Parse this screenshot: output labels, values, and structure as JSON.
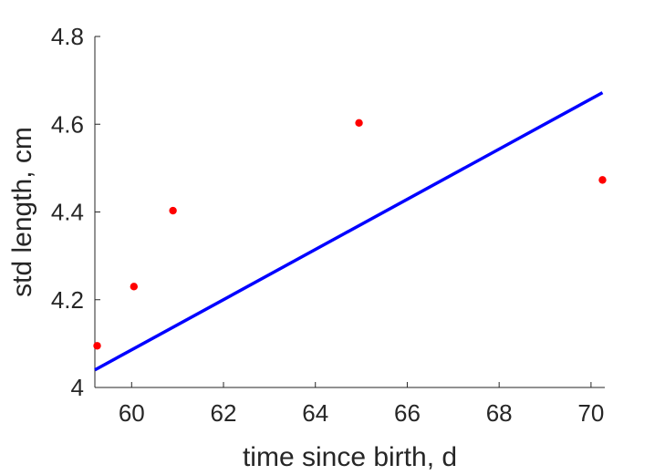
{
  "chart_data": {
    "type": "scatter",
    "title": "",
    "xlabel": "time since birth, d",
    "ylabel": "std length, cm",
    "xlim": [
      59.2,
      70.3
    ],
    "ylim": [
      4.0,
      4.8
    ],
    "x_ticks": [
      60,
      62,
      64,
      66,
      68,
      70
    ],
    "x_tick_labels": [
      "60",
      "62",
      "64",
      "66",
      "68",
      "70"
    ],
    "y_ticks": [
      4.0,
      4.2,
      4.4,
      4.6,
      4.8
    ],
    "y_tick_labels": [
      "4",
      "4.2",
      "4.4",
      "4.6",
      "4.8"
    ],
    "grid": false,
    "series": [
      {
        "type": "scatter",
        "color": "#ff0000",
        "x": [
          59.25,
          60.05,
          60.9,
          64.95,
          70.25
        ],
        "y": [
          4.095,
          4.23,
          4.403,
          4.603,
          4.473
        ]
      },
      {
        "type": "line",
        "color": "#0000ff",
        "x": [
          59.2,
          70.25
        ],
        "y": [
          4.04,
          4.672
        ]
      }
    ]
  }
}
